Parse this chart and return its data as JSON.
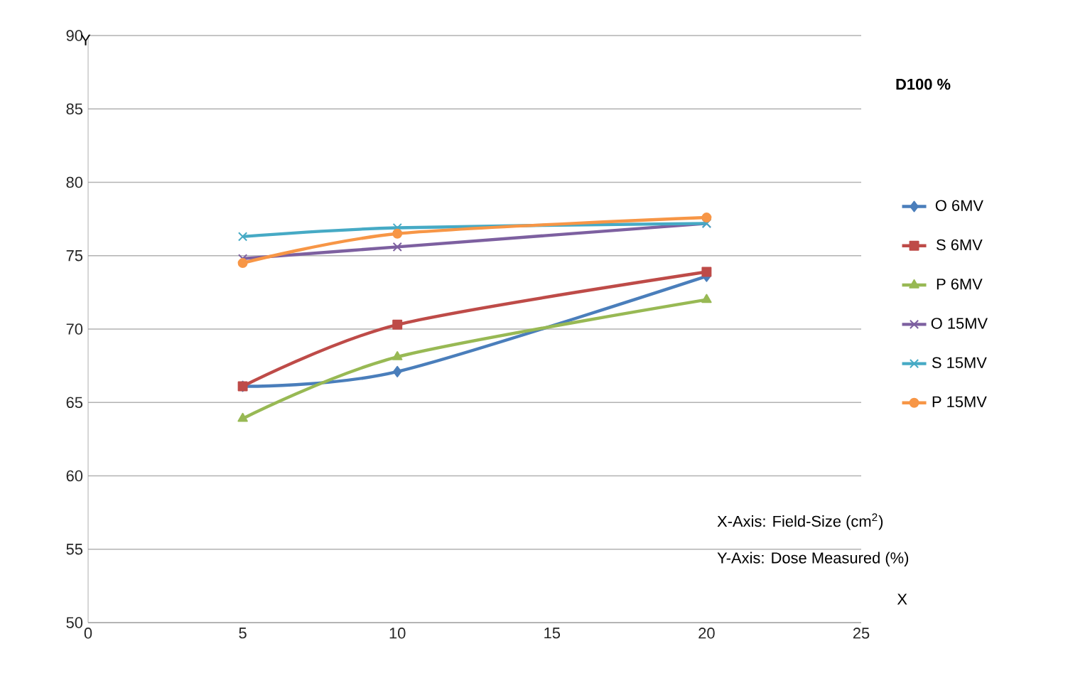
{
  "chart_data": {
    "type": "line",
    "title": "D100 %",
    "xlabel": "X",
    "ylabel": "Y",
    "annotations": [
      "X-Axis: Field-Size (cm$^{2}$)",
      "Y-Axis: Dose Measured (%)"
    ],
    "x": [
      5,
      10,
      20
    ],
    "series": [
      {
        "name": "O 6MV",
        "color": "#4a7ebb",
        "marker": "diamond",
        "values": [
          66.1,
          67.1,
          73.6
        ]
      },
      {
        "name": "S 6MV",
        "color": "#be4b48",
        "marker": "square",
        "values": [
          66.1,
          70.3,
          73.9
        ]
      },
      {
        "name": "P 6MV",
        "color": "#98b954",
        "marker": "triangle",
        "values": [
          63.9,
          68.1,
          72.0
        ]
      },
      {
        "name": "O 15MV",
        "color": "#7d60a0",
        "marker": "cross",
        "values": [
          74.8,
          75.6,
          77.2
        ]
      },
      {
        "name": "S 15MV",
        "color": "#46aac5",
        "marker": "cross",
        "values": [
          76.3,
          76.9,
          77.2
        ]
      },
      {
        "name": "P 15MV",
        "color": "#f79646",
        "marker": "circle",
        "values": [
          74.5,
          76.5,
          77.6
        ]
      }
    ],
    "xlim": [
      0,
      25
    ],
    "ylim": [
      50,
      90
    ],
    "xticks": [
      0,
      5,
      10,
      15,
      20,
      25
    ],
    "yticks": [
      50,
      55,
      60,
      65,
      70,
      75,
      80,
      85,
      90
    ],
    "grid": "y",
    "legend": "right",
    "line_style": "solid"
  }
}
